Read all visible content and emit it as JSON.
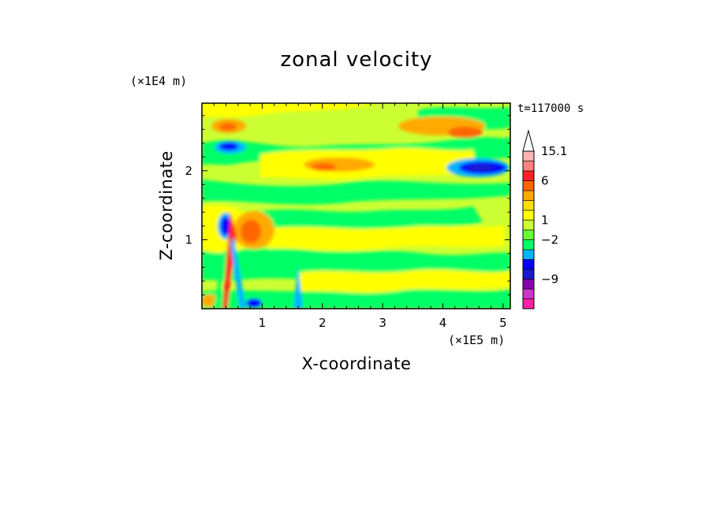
{
  "chart_data": {
    "type": "heatmap",
    "title": "zonal velocity",
    "xlabel": "X-coordinate",
    "ylabel": "Z-coordinate",
    "x_unit": "(×1E5 m)",
    "y_unit": "(×1E4 m)",
    "time_label": "t=117000 s",
    "xlim": [
      0,
      5.12
    ],
    "ylim": [
      0,
      2.98
    ],
    "x_ticks": [
      1,
      2,
      3,
      4,
      5
    ],
    "y_ticks": [
      1,
      2
    ],
    "colorbar": {
      "labels": [
        {
          "text": "15.1",
          "value": 15.1
        },
        {
          "text": "6",
          "value": 6
        },
        {
          "text": "1",
          "value": 1
        },
        {
          "text": "−2",
          "value": -2
        },
        {
          "text": "−9",
          "value": -9
        }
      ],
      "colors": [
        "#ff1fa5",
        "#cc33cc",
        "#8800aa",
        "#1a1acc",
        "#0000ff",
        "#00b4ff",
        "#00ff66",
        "#66ff33",
        "#ccff33",
        "#ffff00",
        "#ffdd00",
        "#ffaa00",
        "#ff6600",
        "#ff2222",
        "#ff8080",
        "#ffb4b4",
        "#ffffff"
      ]
    },
    "features": [
      {
        "color": "#0000ff",
        "x": 4.6,
        "z": 2.05
      },
      {
        "color": "#0000ff",
        "x": 0.45,
        "z": 2.38
      },
      {
        "color": "#0000ff",
        "x": 0.38,
        "z": 1.22
      },
      {
        "color": "#ff6600",
        "x": 0.45,
        "z": 2.65
      },
      {
        "color": "#ff6600",
        "x": 2.35,
        "z": 2.1
      },
      {
        "color": "#ff6600",
        "x": 4.35,
        "z": 2.5
      },
      {
        "color": "#ff6600",
        "x": 0.75,
        "z": 1.12
      }
    ]
  }
}
